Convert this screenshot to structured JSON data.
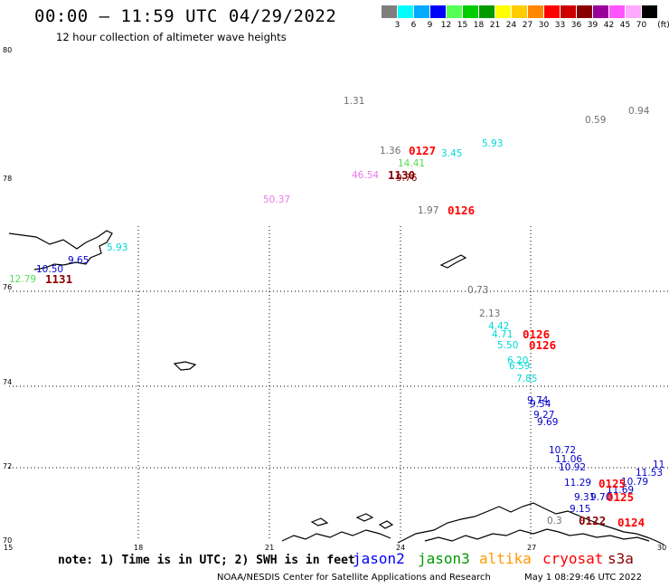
{
  "header": {
    "title": "00:00 – 11:59 UTC 04/29/2022",
    "subtitle": "12 hour collection of altimeter wave heights"
  },
  "legend": {
    "unit": "(ft)",
    "bins": [
      {
        "label": "3",
        "color": "#7f7f7f"
      },
      {
        "label": "6",
        "color": "#00ffff"
      },
      {
        "label": "9",
        "color": "#00aaff"
      },
      {
        "label": "12",
        "color": "#0000ff"
      },
      {
        "label": "15",
        "color": "#55ff55"
      },
      {
        "label": "18",
        "color": "#00cc00"
      },
      {
        "label": "21",
        "color": "#009900"
      },
      {
        "label": "24",
        "color": "#ffff00"
      },
      {
        "label": "27",
        "color": "#ffcc00"
      },
      {
        "label": "30",
        "color": "#ff8800"
      },
      {
        "label": "33",
        "color": "#ff0000"
      },
      {
        "label": "36",
        "color": "#cc0000"
      },
      {
        "label": "39",
        "color": "#880000"
      },
      {
        "label": "42",
        "color": "#990099"
      },
      {
        "label": "45",
        "color": "#ff55ff"
      },
      {
        "label": "70",
        "color": "#ffaaff"
      },
      {
        "label": "",
        "color": "#000000"
      }
    ]
  },
  "map": {
    "lat_labels": [
      "80",
      "78",
      "76",
      "74",
      "72",
      "70"
    ],
    "lon_labels": [
      "15",
      "18",
      "21",
      "24",
      "27",
      "30"
    ]
  },
  "observations": [
    {
      "text": "1.31",
      "color": "#707070"
    },
    {
      "text": "0.59",
      "color": "#707070"
    },
    {
      "text": "0.94",
      "color": "#707070"
    },
    {
      "text": "1.36",
      "color": "#707070"
    },
    {
      "text": "3.45",
      "color": "#00d8d8"
    },
    {
      "text": "5.93",
      "color": "#00d8d8"
    },
    {
      "text": "14.41",
      "color": "#55dd55"
    },
    {
      "text": "46.54",
      "color": "#ee77ee"
    },
    {
      "text": "9.76",
      "color": "#880000"
    },
    {
      "text": "50.37",
      "color": "#ee77ee"
    },
    {
      "text": "1.97",
      "color": "#707070"
    },
    {
      "text": "5.93",
      "color": "#00d8d8"
    },
    {
      "text": "9.65",
      "color": "#0000cc"
    },
    {
      "text": "10.50",
      "color": "#0000cc"
    },
    {
      "text": "12.79",
      "color": "#55dd55"
    },
    {
      "text": "0.73",
      "color": "#707070"
    },
    {
      "text": "2.13",
      "color": "#707070"
    },
    {
      "text": "4.42",
      "color": "#00d8d8"
    },
    {
      "text": "4.71",
      "color": "#00d8d8"
    },
    {
      "text": "5.50",
      "color": "#00d8d8"
    },
    {
      "text": "6.20",
      "color": "#00d8d8"
    },
    {
      "text": "6.59",
      "color": "#00d8d8"
    },
    {
      "text": "7.85",
      "color": "#00d8d8"
    },
    {
      "text": "9.74",
      "color": "#0000cc"
    },
    {
      "text": "9.54",
      "color": "#0000cc"
    },
    {
      "text": "9.27",
      "color": "#0000cc"
    },
    {
      "text": "9.69",
      "color": "#0000cc"
    },
    {
      "text": "10.72",
      "color": "#0000cc"
    },
    {
      "text": "11.06",
      "color": "#0000cc"
    },
    {
      "text": "10.92",
      "color": "#0000cc"
    },
    {
      "text": "11",
      "color": "#0000cc"
    },
    {
      "text": "11.53",
      "color": "#0000cc"
    },
    {
      "text": "10.79",
      "color": "#0000cc"
    },
    {
      "text": "11.69",
      "color": "#0000cc"
    },
    {
      "text": "11.29",
      "color": "#0000cc"
    },
    {
      "text": "9.31",
      "color": "#0000cc"
    },
    {
      "text": "9.70",
      "color": "#0000cc"
    },
    {
      "text": "9.15",
      "color": "#0000cc"
    },
    {
      "text": "0.3",
      "color": "#707070"
    }
  ],
  "passes": [
    {
      "text": "0127",
      "color": "#ff0000"
    },
    {
      "text": "1130",
      "color": "#880000"
    },
    {
      "text": "0126",
      "color": "#ff0000"
    },
    {
      "text": "1131",
      "color": "#880000"
    },
    {
      "text": "0126",
      "color": "#ff0000"
    },
    {
      "text": "0126",
      "color": "#ff0000"
    },
    {
      "text": "0125",
      "color": "#ff0000"
    },
    {
      "text": "0125",
      "color": "#ff0000"
    },
    {
      "text": "0124",
      "color": "#ff0000"
    },
    {
      "text": "0122",
      "color": "#880000"
    }
  ],
  "footer": {
    "note": "note: 1) Time is in UTC; 2) SWH is in feet",
    "satellites": [
      {
        "name": "jason2",
        "color": "#0000ff"
      },
      {
        "name": "jason3",
        "color": "#009900"
      },
      {
        "name": "altika",
        "color": "#ff9900"
      },
      {
        "name": "cryosat",
        "color": "#ff0000"
      },
      {
        "name": "s3a",
        "color": "#880000"
      }
    ],
    "credit": "NOAA/NESDIS Center for Satellite Applications and Research",
    "timestamp": "May  1 08:29:46 UTC 2022"
  }
}
